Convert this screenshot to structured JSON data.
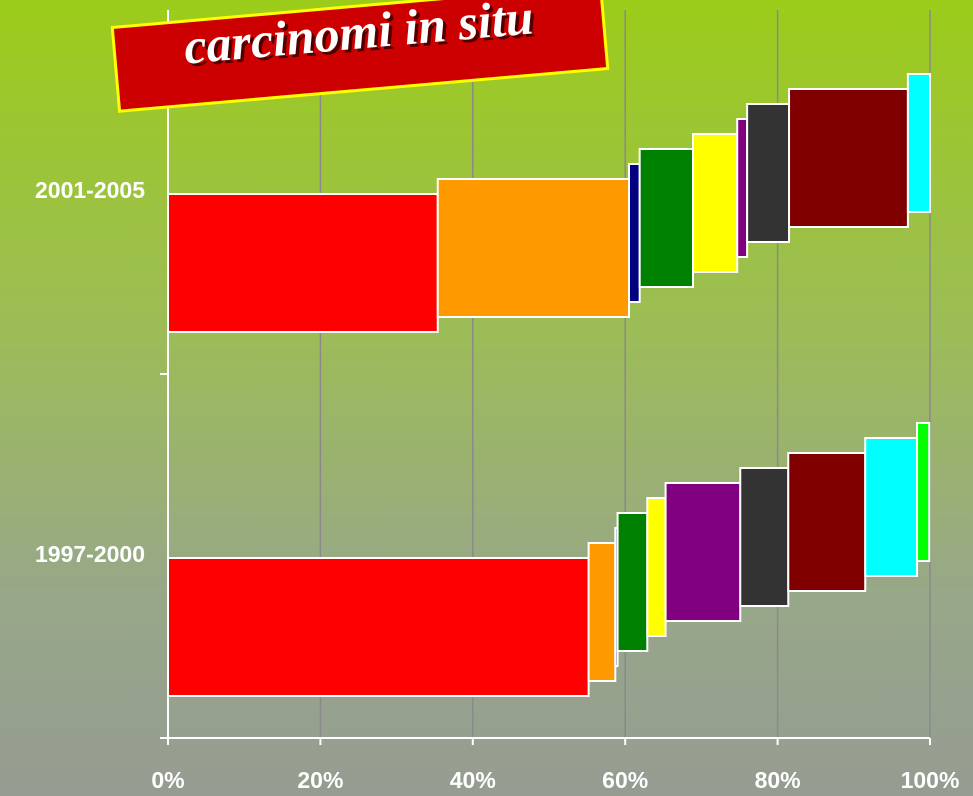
{
  "chart_data": {
    "type": "bar",
    "orientation": "horizontal",
    "stacked": "percent",
    "title": "carcinomi in situ",
    "categories": [
      "2001-2005",
      "1997-2000"
    ],
    "series": [
      {
        "color": "#ff0000",
        "values": [
          35.4,
          55.2
        ]
      },
      {
        "color": "#ff9900",
        "values": [
          25.1,
          3.5
        ]
      },
      {
        "color": "#000080",
        "values": [
          1.4,
          0.3
        ]
      },
      {
        "color": "#008000",
        "values": [
          7.0,
          3.9
        ]
      },
      {
        "color": "#ffff00",
        "values": [
          5.8,
          2.4
        ]
      },
      {
        "color": "#800080",
        "values": [
          1.3,
          9.8
        ]
      },
      {
        "color": "#333333",
        "values": [
          5.5,
          6.3
        ]
      },
      {
        "color": "#800000",
        "values": [
          15.6,
          10.1
        ]
      },
      {
        "color": "#00ffff",
        "values": [
          2.9,
          6.8
        ]
      },
      {
        "color": "#00ff00",
        "values": [
          0,
          1.6
        ]
      }
    ],
    "xlim": [
      0,
      100
    ],
    "xticks": [
      {
        "value": 0,
        "label": "0%"
      },
      {
        "value": 20,
        "label": "20%"
      },
      {
        "value": 40,
        "label": "40%"
      },
      {
        "value": 60,
        "label": "60%"
      },
      {
        "value": 80,
        "label": "80%"
      },
      {
        "value": 100,
        "label": "100%"
      }
    ],
    "grid": true
  }
}
